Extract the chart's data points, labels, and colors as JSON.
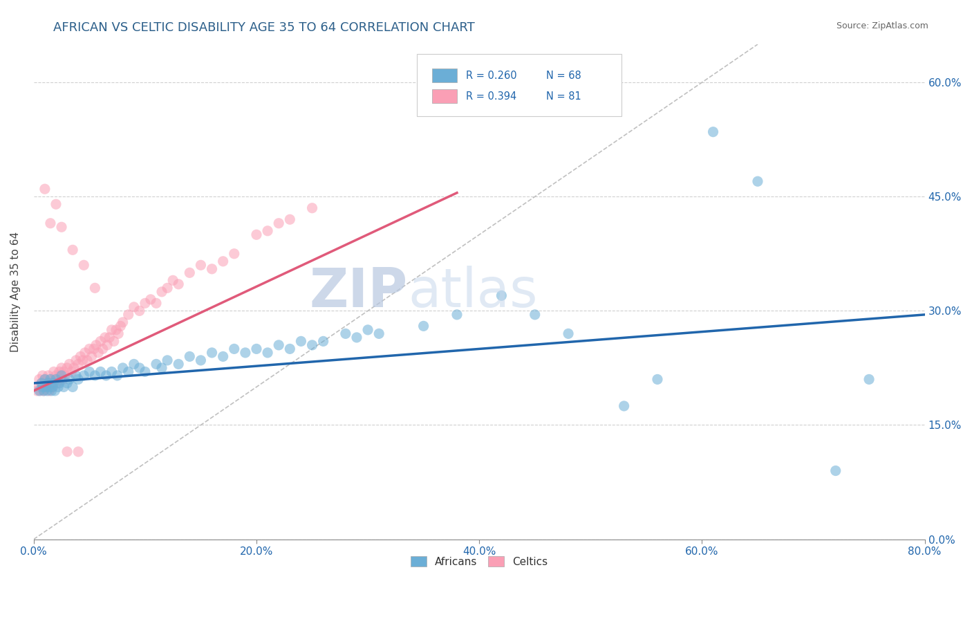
{
  "title": "AFRICAN VS CELTIC DISABILITY AGE 35 TO 64 CORRELATION CHART",
  "source": "Source: ZipAtlas.com",
  "ylabel": "Disability Age 35 to 64",
  "x_min": 0.0,
  "x_max": 0.8,
  "y_min": 0.0,
  "y_max": 0.65,
  "x_ticks": [
    0.0,
    0.2,
    0.4,
    0.6,
    0.8
  ],
  "x_tick_labels": [
    "0.0%",
    "20.0%",
    "40.0%",
    "60.0%",
    "80.0%"
  ],
  "y_ticks": [
    0.0,
    0.15,
    0.3,
    0.45,
    0.6
  ],
  "y_tick_labels": [
    "0.0%",
    "15.0%",
    "30.0%",
    "45.0%",
    "60.0%"
  ],
  "watermark_zip": "ZIP",
  "watermark_atlas": "atlas",
  "legend_R_african": "R = 0.260",
  "legend_N_african": "N = 68",
  "legend_R_celtic": "R = 0.394",
  "legend_N_celtic": "N = 81",
  "african_color": "#6baed6",
  "celtic_color": "#fa9fb5",
  "african_line_color": "#2166ac",
  "celtic_line_color": "#e05a7a",
  "diagonal_color": "#c0c0c0",
  "african_line_x0": 0.0,
  "african_line_y0": 0.205,
  "african_line_x1": 0.8,
  "african_line_y1": 0.295,
  "celtic_line_x0": 0.0,
  "celtic_line_y0": 0.195,
  "celtic_line_x1": 0.38,
  "celtic_line_y1": 0.455,
  "african_x": [
    0.005,
    0.007,
    0.008,
    0.009,
    0.01,
    0.011,
    0.012,
    0.013,
    0.014,
    0.015,
    0.016,
    0.017,
    0.018,
    0.019,
    0.02,
    0.022,
    0.023,
    0.025,
    0.027,
    0.03,
    0.032,
    0.035,
    0.038,
    0.04,
    0.045,
    0.05,
    0.055,
    0.06,
    0.065,
    0.07,
    0.075,
    0.08,
    0.085,
    0.09,
    0.095,
    0.1,
    0.11,
    0.115,
    0.12,
    0.13,
    0.14,
    0.15,
    0.16,
    0.17,
    0.18,
    0.19,
    0.2,
    0.21,
    0.22,
    0.23,
    0.24,
    0.25,
    0.26,
    0.28,
    0.29,
    0.3,
    0.31,
    0.35,
    0.38,
    0.42,
    0.45,
    0.48,
    0.53,
    0.56,
    0.61,
    0.65,
    0.72,
    0.75
  ],
  "african_y": [
    0.195,
    0.205,
    0.2,
    0.195,
    0.21,
    0.2,
    0.195,
    0.205,
    0.2,
    0.21,
    0.195,
    0.2,
    0.205,
    0.195,
    0.21,
    0.2,
    0.205,
    0.215,
    0.2,
    0.205,
    0.21,
    0.2,
    0.215,
    0.21,
    0.215,
    0.22,
    0.215,
    0.22,
    0.215,
    0.22,
    0.215,
    0.225,
    0.22,
    0.23,
    0.225,
    0.22,
    0.23,
    0.225,
    0.235,
    0.23,
    0.24,
    0.235,
    0.245,
    0.24,
    0.25,
    0.245,
    0.25,
    0.245,
    0.255,
    0.25,
    0.26,
    0.255,
    0.26,
    0.27,
    0.265,
    0.275,
    0.27,
    0.28,
    0.295,
    0.32,
    0.295,
    0.27,
    0.175,
    0.21,
    0.535,
    0.47,
    0.09,
    0.21
  ],
  "celtic_x": [
    0.003,
    0.004,
    0.005,
    0.006,
    0.007,
    0.008,
    0.009,
    0.01,
    0.011,
    0.012,
    0.013,
    0.014,
    0.015,
    0.016,
    0.017,
    0.018,
    0.019,
    0.02,
    0.021,
    0.022,
    0.023,
    0.024,
    0.025,
    0.026,
    0.027,
    0.028,
    0.03,
    0.032,
    0.034,
    0.036,
    0.038,
    0.04,
    0.042,
    0.044,
    0.046,
    0.048,
    0.05,
    0.052,
    0.054,
    0.056,
    0.058,
    0.06,
    0.062,
    0.064,
    0.066,
    0.068,
    0.07,
    0.072,
    0.074,
    0.076,
    0.078,
    0.08,
    0.085,
    0.09,
    0.095,
    0.1,
    0.105,
    0.11,
    0.115,
    0.12,
    0.125,
    0.13,
    0.14,
    0.15,
    0.16,
    0.17,
    0.18,
    0.2,
    0.21,
    0.22,
    0.23,
    0.25,
    0.03,
    0.04,
    0.01,
    0.02,
    0.015,
    0.025,
    0.035,
    0.045,
    0.055
  ],
  "celtic_y": [
    0.195,
    0.2,
    0.21,
    0.195,
    0.205,
    0.215,
    0.195,
    0.21,
    0.2,
    0.205,
    0.215,
    0.195,
    0.21,
    0.205,
    0.2,
    0.22,
    0.21,
    0.215,
    0.205,
    0.21,
    0.22,
    0.215,
    0.225,
    0.21,
    0.22,
    0.215,
    0.225,
    0.23,
    0.22,
    0.225,
    0.235,
    0.23,
    0.24,
    0.235,
    0.245,
    0.235,
    0.25,
    0.24,
    0.25,
    0.255,
    0.245,
    0.26,
    0.25,
    0.265,
    0.255,
    0.265,
    0.275,
    0.26,
    0.275,
    0.27,
    0.28,
    0.285,
    0.295,
    0.305,
    0.3,
    0.31,
    0.315,
    0.31,
    0.325,
    0.33,
    0.34,
    0.335,
    0.35,
    0.36,
    0.355,
    0.365,
    0.375,
    0.4,
    0.405,
    0.415,
    0.42,
    0.435,
    0.115,
    0.115,
    0.46,
    0.44,
    0.415,
    0.41,
    0.38,
    0.36,
    0.33
  ]
}
